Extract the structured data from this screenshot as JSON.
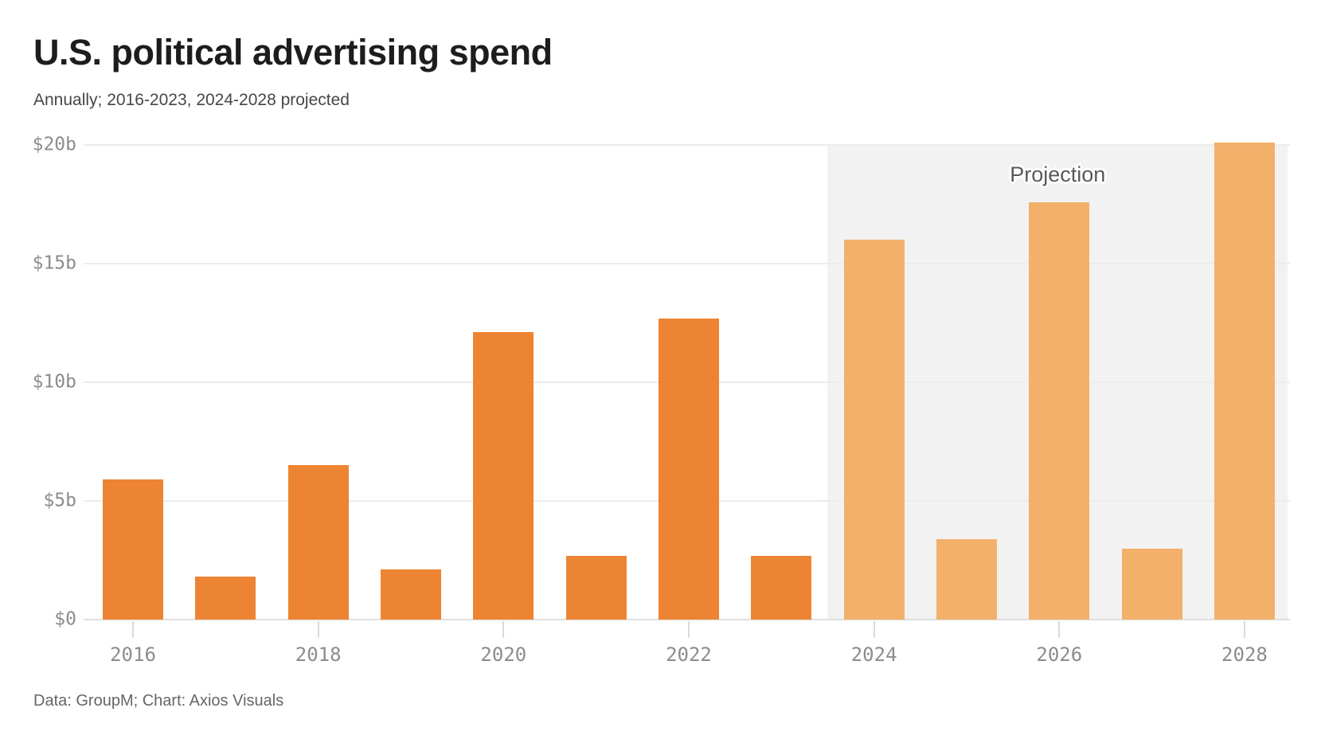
{
  "header": {
    "title": "U.S. political advertising spend",
    "subtitle": "Annually; 2016-2023, 2024-2028 projected"
  },
  "footer": {
    "source": "Data: GroupM; Chart: Axios Visuals"
  },
  "colors": {
    "bar": "#ED8433",
    "bar_projected": "#F3B06A",
    "projection_band": "#F2F2F2",
    "gridline": "#ECECEC",
    "baseline": "#DFDFDF",
    "axis_text": "#8C8C8C",
    "title_text": "#1D1D1D",
    "annotation_text": "#595959"
  },
  "chart_data": {
    "type": "bar",
    "title": "U.S. political advertising spend",
    "subtitle": "Annually; 2016-2023, 2024-2028 projected",
    "unit": "USD billions",
    "categories": [
      2016,
      2017,
      2018,
      2019,
      2020,
      2021,
      2022,
      2023,
      2024,
      2025,
      2026,
      2027,
      2028
    ],
    "values": [
      5.9,
      1.8,
      6.5,
      2.1,
      12.1,
      2.7,
      12.7,
      2.7,
      16.0,
      3.4,
      17.6,
      3.0,
      20.1
    ],
    "projected_years": [
      2024,
      2025,
      2026,
      2027,
      2028
    ],
    "ylim": [
      0,
      20
    ],
    "yticks": [
      {
        "label": "$20b",
        "value": 20
      },
      {
        "label": "$15b",
        "value": 15
      },
      {
        "label": "$10b",
        "value": 10
      },
      {
        "label": "$5b",
        "value": 5
      },
      {
        "label": "$0",
        "value": 0
      }
    ],
    "xtick_labels": [
      "2016",
      "2018",
      "2020",
      "2022",
      "2024",
      "2026",
      "2028"
    ],
    "annotation": "Projection",
    "legend": "none",
    "grid": "horizontal",
    "source": "Data: GroupM; Chart: Axios Visuals"
  }
}
